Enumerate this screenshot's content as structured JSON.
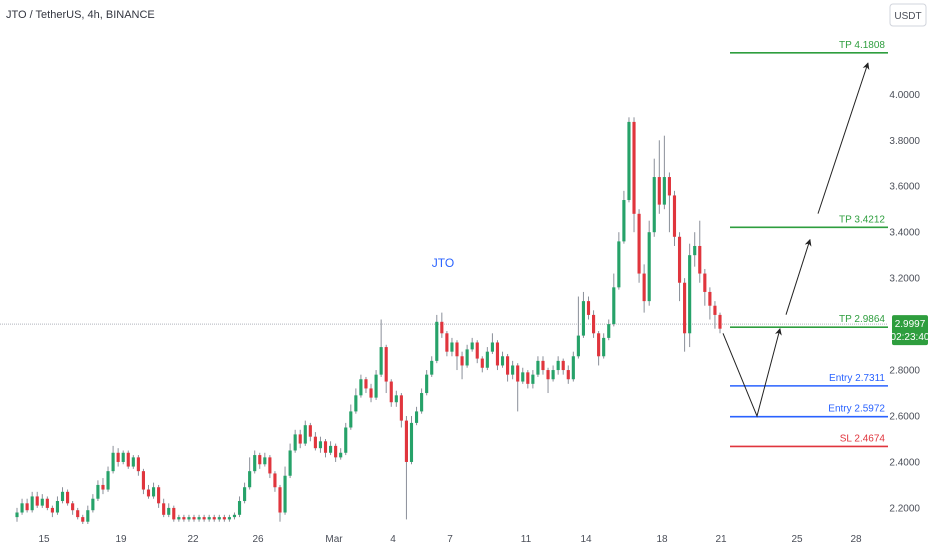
{
  "chart_data": {
    "type": "candlestick",
    "title": "JTO / TetherUS, 4h, BINANCE",
    "currency_button": "USDT",
    "annotation": "JTO",
    "x_tick_labels": [
      "15",
      "19",
      "22",
      "26",
      "Mar",
      "4",
      "7",
      "11",
      "14",
      "18",
      "21",
      "25",
      "28"
    ],
    "y_tick_labels": [
      "2.2000",
      "2.4000",
      "2.6000",
      "2.8000",
      "3.2000",
      "3.4000",
      "3.6000",
      "3.8000",
      "4.0000"
    ],
    "ylim": [
      2.13,
      4.28
    ],
    "current_price": "2.9997",
    "countdown": "02:23:40",
    "levels": [
      {
        "label": "TP 4.1808",
        "value": 4.1808,
        "badge": "4.1808",
        "color": "#2e9e3e"
      },
      {
        "label": "TP 3.4212",
        "value": 3.4212,
        "badge": "3.4212",
        "color": "#2e9e3e"
      },
      {
        "label": "TP 2.9864",
        "value": 2.9864,
        "badge": "2.9864",
        "color": "#2e9e3e"
      },
      {
        "label": "Entry 2.7311",
        "value": 2.7311,
        "badge": "2.7311",
        "color": "#2962ff"
      },
      {
        "label": "Entry 2.5972",
        "value": 2.5972,
        "badge": "2.5972",
        "color": "#2962ff"
      },
      {
        "label": "SL 2.4674",
        "value": 2.4674,
        "badge": "2.4674",
        "color": "#e0353d"
      }
    ],
    "colors": {
      "up": "#26a269",
      "down": "#e0353d",
      "wick": "#8a8f99",
      "arrow": "#222222",
      "current_price_badge": "#2e9e3e"
    },
    "projected_path": [
      {
        "step": 0,
        "price": 2.96
      },
      {
        "step": 1,
        "price": 2.6
      },
      {
        "step": 2,
        "price": 2.98
      },
      {
        "step": 3,
        "price": 3.42
      },
      {
        "step": 4,
        "price": 4.18
      }
    ],
    "candles": [
      [
        2.16,
        2.18,
        2.14,
        2.2
      ],
      [
        2.18,
        2.22,
        2.17,
        2.24
      ],
      [
        2.22,
        2.19,
        2.18,
        2.24
      ],
      [
        2.19,
        2.25,
        2.18,
        2.27
      ],
      [
        2.25,
        2.21,
        2.2,
        2.27
      ],
      [
        2.21,
        2.24,
        2.2,
        2.26
      ],
      [
        2.24,
        2.2,
        2.19,
        2.25
      ],
      [
        2.2,
        2.18,
        2.16,
        2.21
      ],
      [
        2.18,
        2.23,
        2.17,
        2.25
      ],
      [
        2.23,
        2.27,
        2.22,
        2.29
      ],
      [
        2.27,
        2.22,
        2.21,
        2.28
      ],
      [
        2.22,
        2.19,
        2.17,
        2.23
      ],
      [
        2.19,
        2.16,
        2.15,
        2.2
      ],
      [
        2.16,
        2.14,
        2.13,
        2.17
      ],
      [
        2.14,
        2.19,
        2.13,
        2.21
      ],
      [
        2.19,
        2.24,
        2.18,
        2.26
      ],
      [
        2.24,
        2.3,
        2.23,
        2.32
      ],
      [
        2.3,
        2.28,
        2.26,
        2.33
      ],
      [
        2.28,
        2.36,
        2.27,
        2.38
      ],
      [
        2.36,
        2.44,
        2.35,
        2.47
      ],
      [
        2.44,
        2.4,
        2.38,
        2.46
      ],
      [
        2.4,
        2.44,
        2.39,
        2.45
      ],
      [
        2.44,
        2.38,
        2.37,
        2.45
      ],
      [
        2.38,
        2.42,
        2.37,
        2.43
      ],
      [
        2.42,
        2.36,
        2.34,
        2.43
      ],
      [
        2.36,
        2.28,
        2.26,
        2.37
      ],
      [
        2.28,
        2.25,
        2.24,
        2.3
      ],
      [
        2.25,
        2.29,
        2.24,
        2.31
      ],
      [
        2.29,
        2.22,
        2.2,
        2.3
      ],
      [
        2.22,
        2.17,
        2.16,
        2.24
      ],
      [
        2.17,
        2.2,
        2.16,
        2.22
      ],
      [
        2.2,
        2.15,
        2.14,
        2.21
      ],
      [
        2.15,
        2.16,
        2.14,
        2.17
      ],
      [
        2.16,
        2.15,
        2.14,
        2.17
      ],
      [
        2.15,
        2.16,
        2.14,
        2.17
      ],
      [
        2.16,
        2.15,
        2.14,
        2.17
      ],
      [
        2.15,
        2.16,
        2.14,
        2.17
      ],
      [
        2.16,
        2.15,
        2.14,
        2.17
      ],
      [
        2.15,
        2.16,
        2.14,
        2.17
      ],
      [
        2.16,
        2.15,
        2.14,
        2.17
      ],
      [
        2.15,
        2.16,
        2.14,
        2.17
      ],
      [
        2.16,
        2.15,
        2.14,
        2.17
      ],
      [
        2.15,
        2.16,
        2.14,
        2.17
      ],
      [
        2.16,
        2.17,
        2.15,
        2.18
      ],
      [
        2.17,
        2.23,
        2.16,
        2.25
      ],
      [
        2.23,
        2.29,
        2.22,
        2.31
      ],
      [
        2.29,
        2.36,
        2.28,
        2.42
      ],
      [
        2.36,
        2.43,
        2.35,
        2.45
      ],
      [
        2.43,
        2.39,
        2.37,
        2.44
      ],
      [
        2.39,
        2.42,
        2.38,
        2.44
      ],
      [
        2.42,
        2.35,
        2.33,
        2.43
      ],
      [
        2.35,
        2.29,
        2.27,
        2.36
      ],
      [
        2.29,
        2.18,
        2.14,
        2.3
      ],
      [
        2.18,
        2.34,
        2.17,
        2.38
      ],
      [
        2.34,
        2.45,
        2.33,
        2.48
      ],
      [
        2.45,
        2.52,
        2.44,
        2.54
      ],
      [
        2.52,
        2.48,
        2.46,
        2.54
      ],
      [
        2.48,
        2.56,
        2.47,
        2.58
      ],
      [
        2.56,
        2.51,
        2.49,
        2.57
      ],
      [
        2.51,
        2.46,
        2.45,
        2.53
      ],
      [
        2.46,
        2.49,
        2.44,
        2.51
      ],
      [
        2.49,
        2.44,
        2.42,
        2.5
      ],
      [
        2.44,
        2.47,
        2.43,
        2.49
      ],
      [
        2.47,
        2.42,
        2.4,
        2.48
      ],
      [
        2.42,
        2.44,
        2.41,
        2.46
      ],
      [
        2.44,
        2.55,
        2.43,
        2.57
      ],
      [
        2.55,
        2.62,
        2.54,
        2.65
      ],
      [
        2.62,
        2.69,
        2.61,
        2.72
      ],
      [
        2.69,
        2.76,
        2.68,
        2.78
      ],
      [
        2.76,
        2.72,
        2.7,
        2.77
      ],
      [
        2.72,
        2.68,
        2.66,
        2.74
      ],
      [
        2.68,
        2.78,
        2.67,
        2.8
      ],
      [
        2.78,
        2.9,
        2.77,
        3.02
      ],
      [
        2.9,
        2.75,
        2.7,
        2.91
      ],
      [
        2.75,
        2.66,
        2.64,
        2.76
      ],
      [
        2.66,
        2.69,
        2.64,
        2.71
      ],
      [
        2.69,
        2.58,
        2.55,
        2.7
      ],
      [
        2.58,
        2.4,
        2.15,
        2.6
      ],
      [
        2.4,
        2.57,
        2.39,
        2.6
      ],
      [
        2.57,
        2.62,
        2.56,
        2.64
      ],
      [
        2.62,
        2.7,
        2.61,
        2.72
      ],
      [
        2.7,
        2.78,
        2.69,
        2.8
      ],
      [
        2.78,
        2.84,
        2.77,
        2.86
      ],
      [
        2.84,
        3.01,
        2.83,
        3.04
      ],
      [
        3.01,
        2.96,
        2.94,
        3.05
      ],
      [
        2.96,
        2.88,
        2.86,
        2.97
      ],
      [
        2.88,
        2.92,
        2.86,
        2.94
      ],
      [
        2.92,
        2.86,
        2.8,
        2.93
      ],
      [
        2.86,
        2.82,
        2.76,
        2.88
      ],
      [
        2.82,
        2.89,
        2.81,
        2.91
      ],
      [
        2.89,
        2.92,
        2.88,
        2.94
      ],
      [
        2.92,
        2.85,
        2.83,
        2.93
      ],
      [
        2.85,
        2.81,
        2.79,
        2.86
      ],
      [
        2.81,
        2.88,
        2.8,
        2.9
      ],
      [
        2.88,
        2.92,
        2.87,
        2.96
      ],
      [
        2.92,
        2.82,
        2.8,
        2.93
      ],
      [
        2.82,
        2.86,
        2.81,
        2.88
      ],
      [
        2.86,
        2.78,
        2.75,
        2.87
      ],
      [
        2.78,
        2.82,
        2.76,
        2.84
      ],
      [
        2.82,
        2.75,
        2.62,
        2.83
      ],
      [
        2.75,
        2.79,
        2.74,
        2.81
      ],
      [
        2.79,
        2.74,
        2.72,
        2.8
      ],
      [
        2.74,
        2.78,
        2.72,
        2.8
      ],
      [
        2.78,
        2.84,
        2.77,
        2.86
      ],
      [
        2.84,
        2.8,
        2.78,
        2.86
      ],
      [
        2.8,
        2.76,
        2.7,
        2.81
      ],
      [
        2.76,
        2.8,
        2.75,
        2.82
      ],
      [
        2.8,
        2.84,
        2.78,
        2.86
      ],
      [
        2.84,
        2.8,
        2.78,
        2.85
      ],
      [
        2.8,
        2.76,
        2.74,
        2.82
      ],
      [
        2.76,
        2.86,
        2.75,
        2.88
      ],
      [
        2.86,
        2.95,
        2.85,
        3.12
      ],
      [
        2.95,
        3.1,
        2.94,
        3.14
      ],
      [
        3.1,
        3.04,
        3.02,
        3.12
      ],
      [
        3.04,
        2.96,
        2.94,
        3.06
      ],
      [
        2.96,
        2.86,
        2.82,
        2.97
      ],
      [
        2.86,
        2.94,
        2.85,
        2.96
      ],
      [
        2.94,
        3.0,
        2.93,
        3.02
      ],
      [
        3.0,
        3.16,
        2.99,
        3.22
      ],
      [
        3.16,
        3.36,
        3.15,
        3.4
      ],
      [
        3.36,
        3.54,
        3.35,
        3.58
      ],
      [
        3.54,
        3.88,
        3.53,
        3.9
      ],
      [
        3.88,
        3.48,
        3.4,
        3.9
      ],
      [
        3.48,
        3.22,
        3.18,
        3.5
      ],
      [
        3.22,
        3.1,
        3.05,
        3.26
      ],
      [
        3.1,
        3.4,
        3.08,
        3.45
      ],
      [
        3.4,
        3.64,
        3.38,
        3.72
      ],
      [
        3.64,
        3.52,
        3.48,
        3.8
      ],
      [
        3.52,
        3.64,
        3.5,
        3.82
      ],
      [
        3.64,
        3.56,
        3.4,
        3.66
      ],
      [
        3.56,
        3.38,
        3.34,
        3.58
      ],
      [
        3.38,
        3.18,
        3.1,
        3.4
      ],
      [
        3.18,
        2.96,
        2.88,
        3.2
      ],
      [
        2.96,
        3.3,
        2.9,
        3.35
      ],
      [
        3.3,
        3.34,
        3.25,
        3.4
      ],
      [
        3.34,
        3.22,
        3.18,
        3.45
      ],
      [
        3.22,
        3.14,
        3.08,
        3.24
      ],
      [
        3.14,
        3.08,
        3.02,
        3.16
      ],
      [
        3.08,
        3.04,
        2.98,
        3.1
      ],
      [
        3.04,
        2.98,
        2.96,
        3.05
      ]
    ]
  }
}
